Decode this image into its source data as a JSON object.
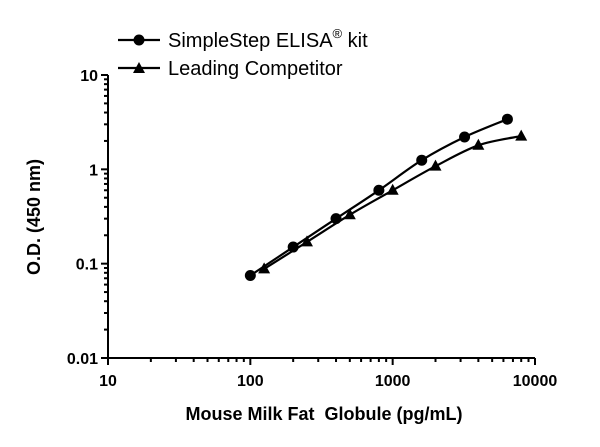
{
  "chart_data": {
    "type": "scatter",
    "xlabel": "Mouse Milk Fat  Globule (pg/mL)",
    "ylabel": "O.D. (450 nm)",
    "x_scale": "log",
    "y_scale": "log",
    "xlim": [
      10,
      10000
    ],
    "ylim": [
      0.01,
      10
    ],
    "x_ticks": [
      10,
      100,
      1000,
      10000
    ],
    "x_tick_labels": [
      "10",
      "100",
      "1000",
      "10000"
    ],
    "y_ticks": [
      0.01,
      0.1,
      1,
      10
    ],
    "y_tick_labels": [
      "0.01",
      "0.1",
      "1",
      "10"
    ],
    "legend_position": "top-left",
    "series": [
      {
        "name": "SimpleStep ELISA",
        "name_superscript": "®",
        "name_suffix": " kit",
        "marker": "circle",
        "color": "#000000",
        "x": [
          100,
          200,
          400,
          800,
          1600,
          3200,
          6400
        ],
        "y": [
          0.075,
          0.15,
          0.3,
          0.6,
          1.25,
          2.2,
          3.4
        ]
      },
      {
        "name": "Leading Competitor",
        "marker": "triangle",
        "color": "#000000",
        "x": [
          125,
          250,
          500,
          1000,
          2000,
          4000,
          8000
        ],
        "y": [
          0.088,
          0.17,
          0.33,
          0.6,
          1.08,
          1.8,
          2.25
        ]
      }
    ]
  }
}
